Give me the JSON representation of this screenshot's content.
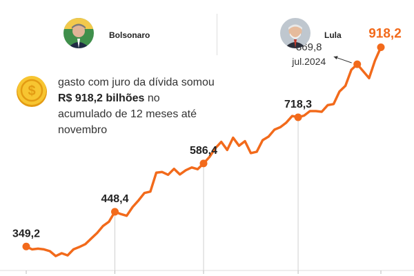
{
  "header": {
    "left_person": "Bolsonaro",
    "right_person": "Lula"
  },
  "caption": {
    "pre": "gasto com juro da dívida somou ",
    "highlight": "R$ 918,2 bilhões",
    "post": " no acumulado de 12 meses até novembro"
  },
  "colors": {
    "line": "#f26a1b",
    "latest_label": "#f26a1b",
    "label": "#222222",
    "annotation": "#333333"
  },
  "chart_data": {
    "type": "line",
    "title": "",
    "xlabel": "",
    "ylabel": "",
    "ylim": [
      265,
      935
    ],
    "x_ticks": [
      "dez",
      "dez",
      "dez",
      "dez",
      "nov"
    ],
    "x_tick_labels_visible": false,
    "series": [
      {
        "name": "",
        "values": [
          349.2,
          341,
          343,
          341,
          336,
          322,
          330,
          324,
          341,
          348,
          356,
          372,
          388,
          408,
          420,
          448.4,
          442,
          437,
          462,
          481,
          502,
          506,
          560,
          562,
          554,
          571,
          555,
          567,
          575,
          570,
          586.4,
          605,
          630,
          648,
          625,
          660,
          637,
          650,
          616,
          620,
          653,
          663,
          683,
          690,
          703,
          722,
          718.3,
          723,
          736,
          736,
          734,
          753,
          756,
          792,
          808,
          854,
          869.8,
          850,
          830,
          880,
          918.2
        ]
      }
    ],
    "labeled_points": [
      {
        "index": 0,
        "label": "349,2"
      },
      {
        "index": 15,
        "label": "448,4"
      },
      {
        "index": 30,
        "label": "586,4"
      },
      {
        "index": 46,
        "label": "718,3"
      },
      {
        "index": 56,
        "label": "869,8",
        "sublabel": "jul.2024"
      },
      {
        "index": 60,
        "label": "918,2"
      }
    ]
  }
}
